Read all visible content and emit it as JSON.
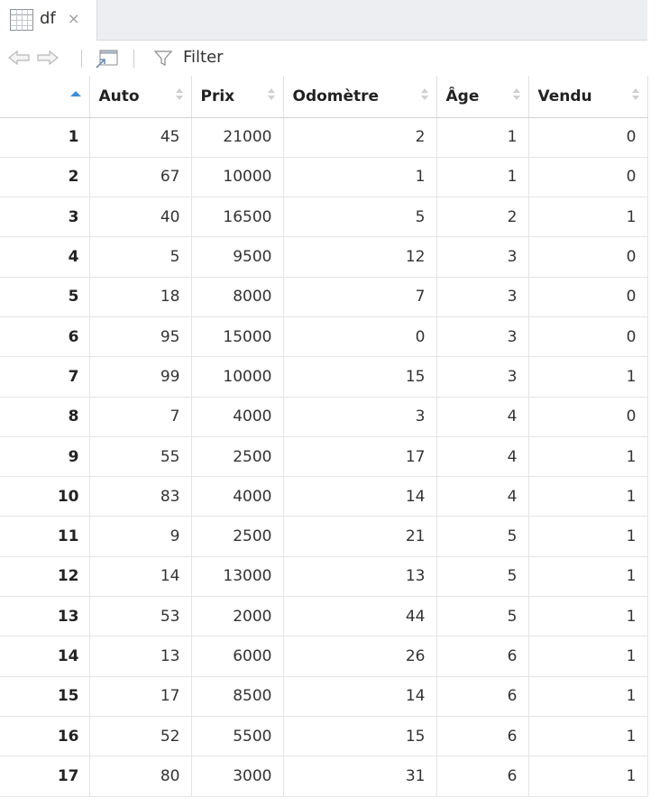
{
  "tab": {
    "label": "df",
    "close": "×"
  },
  "toolbar": {
    "filter_label": "Filter"
  },
  "table": {
    "columns": [
      "Auto",
      "Prix",
      "Odomètre",
      "Âge",
      "Vendu"
    ],
    "rows": [
      [
        "1",
        "45",
        "21000",
        "2",
        "1",
        "0"
      ],
      [
        "2",
        "67",
        "10000",
        "1",
        "1",
        "0"
      ],
      [
        "3",
        "40",
        "16500",
        "5",
        "2",
        "1"
      ],
      [
        "4",
        "5",
        "9500",
        "12",
        "3",
        "0"
      ],
      [
        "5",
        "18",
        "8000",
        "7",
        "3",
        "0"
      ],
      [
        "6",
        "95",
        "15000",
        "0",
        "3",
        "0"
      ],
      [
        "7",
        "99",
        "10000",
        "15",
        "3",
        "1"
      ],
      [
        "8",
        "7",
        "4000",
        "3",
        "4",
        "0"
      ],
      [
        "9",
        "55",
        "2500",
        "17",
        "4",
        "1"
      ],
      [
        "10",
        "83",
        "4000",
        "14",
        "4",
        "1"
      ],
      [
        "11",
        "9",
        "2500",
        "21",
        "5",
        "1"
      ],
      [
        "12",
        "14",
        "13000",
        "13",
        "5",
        "1"
      ],
      [
        "13",
        "53",
        "2000",
        "44",
        "5",
        "1"
      ],
      [
        "14",
        "13",
        "6000",
        "26",
        "6",
        "1"
      ],
      [
        "15",
        "17",
        "8500",
        "14",
        "6",
        "1"
      ],
      [
        "16",
        "52",
        "5500",
        "15",
        "6",
        "1"
      ],
      [
        "17",
        "80",
        "3000",
        "31",
        "6",
        "1"
      ]
    ]
  }
}
